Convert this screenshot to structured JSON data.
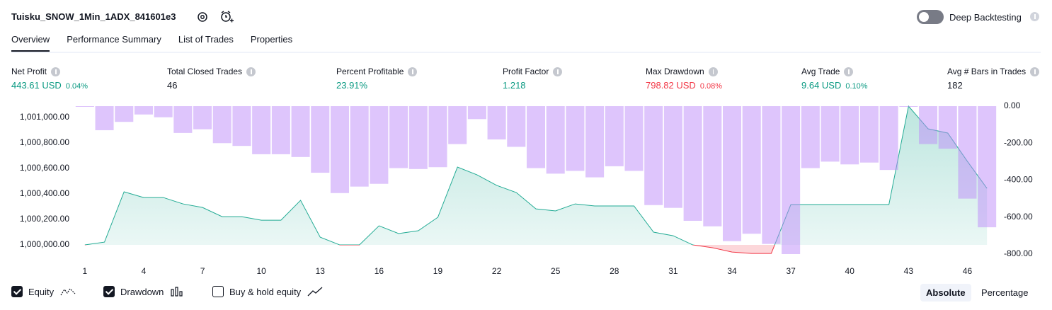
{
  "header": {
    "title": "Tuisku_SNOW_1Min_1ADX_841601e3",
    "deep_backtesting": "Deep Backtesting",
    "deep_backtesting_on": false
  },
  "tabs": [
    "Overview",
    "Performance Summary",
    "List of Trades",
    "Properties"
  ],
  "active_tab": 0,
  "metrics": [
    {
      "label": "Net Profit",
      "value": "443.61 USD",
      "percent": "0.04%",
      "color": "#089981"
    },
    {
      "label": "Total Closed Trades",
      "value": "46",
      "color": "#131722"
    },
    {
      "label": "Percent Profitable",
      "value": "23.91%",
      "color": "#089981"
    },
    {
      "label": "Profit Factor",
      "value": "1.218",
      "color": "#089981"
    },
    {
      "label": "Max Drawdown",
      "value": "798.82 USD",
      "percent": "0.08%",
      "color": "#f23645"
    },
    {
      "label": "Avg Trade",
      "value": "9.64 USD",
      "percent": "0.10%",
      "color": "#089981"
    },
    {
      "label": "Avg # Bars in Trades",
      "value": "182",
      "color": "#131722"
    }
  ],
  "chart_data": {
    "type": "line",
    "x": [
      1,
      2,
      3,
      4,
      5,
      6,
      7,
      8,
      9,
      10,
      11,
      12,
      13,
      14,
      15,
      16,
      17,
      18,
      19,
      20,
      21,
      22,
      23,
      24,
      25,
      26,
      27,
      28,
      29,
      30,
      31,
      32,
      33,
      34,
      35,
      36,
      37,
      38,
      39,
      40,
      41,
      42,
      43,
      44,
      45,
      46,
      47
    ],
    "series": [
      {
        "name": "Equity",
        "type": "line",
        "color": "#22ab94",
        "below_color": "#f23645",
        "checked": true,
        "values": [
          1000000,
          1000022,
          1000417,
          1000372,
          1000372,
          1000322,
          1000294,
          1000222,
          1000222,
          1000194,
          1000194,
          1000350,
          1000061,
          1000000,
          1000000,
          1000150,
          1000089,
          1000111,
          1000217,
          1000611,
          1000550,
          1000467,
          1000411,
          1000283,
          1000267,
          1000322,
          1000306,
          1000306,
          1000306,
          1000100,
          1000072,
          1000000,
          999978,
          999944,
          999933,
          999933,
          1000317,
          1000317,
          1000317,
          1000317,
          1000317,
          1000317,
          1001089,
          1000911,
          1000878,
          1000656,
          1000444
        ]
      },
      {
        "name": "Drawdown",
        "type": "bar",
        "axis": "y2",
        "color": "#be8cfa",
        "checked": true,
        "values": [
          -3,
          -130,
          -85,
          -45,
          -60,
          -145,
          -125,
          -200,
          -215,
          -260,
          -260,
          -275,
          -360,
          -470,
          -435,
          -420,
          -335,
          -340,
          -330,
          -205,
          -70,
          -180,
          -220,
          -335,
          -365,
          -350,
          -385,
          -325,
          -350,
          -535,
          -550,
          -620,
          -650,
          -730,
          -690,
          -745,
          -800,
          -335,
          -300,
          -315,
          -305,
          -345,
          0,
          -205,
          -230,
          -500,
          -655
        ]
      }
    ],
    "options": [
      {
        "label": "Buy & hold equity",
        "checked": false
      }
    ],
    "xlim": [
      0.5,
      47.5
    ],
    "xticks": [
      1,
      4,
      7,
      10,
      13,
      16,
      19,
      22,
      25,
      28,
      31,
      34,
      37,
      40,
      43,
      46
    ],
    "ylim": [
      999928,
      1001089
    ],
    "yticks": [
      {
        "value": 1000000,
        "label": "1,000,000.00"
      },
      {
        "value": 1000200,
        "label": "1,000,200.00"
      },
      {
        "value": 1000400,
        "label": "1,000,400.00"
      },
      {
        "value": 1000600,
        "label": "1,000,600.00"
      },
      {
        "value": 1000800,
        "label": "1,000,800.00"
      },
      {
        "value": 1001000,
        "label": "1,001,000.00"
      }
    ],
    "y2lim": [
      -800,
      0
    ],
    "y2ticks": [
      {
        "value": 0,
        "label": "0.00"
      },
      {
        "value": -200,
        "label": "-200.00"
      },
      {
        "value": -400,
        "label": "-400.00"
      },
      {
        "value": -600,
        "label": "-600.00"
      },
      {
        "value": -800,
        "label": "-800.00"
      }
    ],
    "grid": false
  },
  "view_modes": [
    "Absolute",
    "Percentage"
  ],
  "active_view_mode": 0
}
